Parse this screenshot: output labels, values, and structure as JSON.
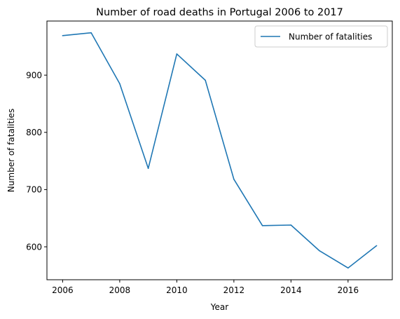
{
  "chart_data": {
    "type": "line",
    "title": "Number of road deaths in Portugal 2006 to 2017",
    "xlabel": "Year",
    "ylabel": "Number of fatalities",
    "x": [
      2006,
      2007,
      2008,
      2009,
      2010,
      2011,
      2012,
      2013,
      2014,
      2015,
      2016,
      2017
    ],
    "series": [
      {
        "name": "Number of fatalities",
        "color": "#1f77b4",
        "values": [
          969,
          974,
          885,
          737,
          937,
          891,
          718,
          637,
          638,
          593,
          563,
          602
        ]
      }
    ],
    "xlim": [
      2005.45,
      2017.55
    ],
    "ylim": [
      542.45,
      994.55
    ],
    "xticks": [
      2006,
      2008,
      2010,
      2012,
      2014,
      2016
    ],
    "yticks": [
      600,
      700,
      800,
      900
    ],
    "grid": false,
    "legend": "top-right"
  }
}
